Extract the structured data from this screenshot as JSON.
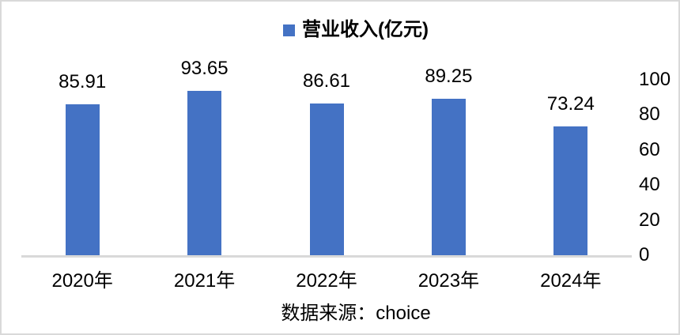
{
  "chart_data": {
    "type": "bar",
    "title": "",
    "legend": "营业收入(亿元)",
    "legend_position": "top-center",
    "categories": [
      "2020年",
      "2021年",
      "2022年",
      "2023年",
      "2024年"
    ],
    "values": [
      85.91,
      93.65,
      86.61,
      89.25,
      73.24
    ],
    "data_labels": [
      "85.91",
      "93.65",
      "86.61",
      "89.25",
      "73.24"
    ],
    "xlabel": "",
    "ylabel": "",
    "y_axis": {
      "side": "right",
      "min": 0,
      "max": 100,
      "ticks": [
        0,
        20,
        40,
        60,
        80,
        100
      ]
    },
    "grid": false,
    "bar_color": "#4472C4",
    "axis_line_color": "#d9d9d9",
    "text_color": "#000000",
    "source_note": "数据来源：choice"
  }
}
